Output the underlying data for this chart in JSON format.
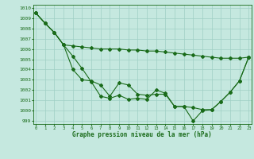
{
  "title": "Graphe pression niveau de la mer (hPa)",
  "bg_color": "#c5e8df",
  "grid_color": "#9fcfc4",
  "line_color": "#1a6b1a",
  "xlim": [
    -0.3,
    23.3
  ],
  "ylim": [
    998.7,
    1010.3
  ],
  "yticks": [
    999,
    1000,
    1001,
    1002,
    1003,
    1004,
    1005,
    1006,
    1007,
    1008,
    1009,
    1010
  ],
  "xticks": [
    0,
    1,
    2,
    3,
    4,
    5,
    6,
    7,
    8,
    9,
    10,
    11,
    12,
    13,
    14,
    15,
    16,
    17,
    18,
    19,
    20,
    21,
    22,
    23
  ],
  "series": [
    [
      1009.5,
      1008.5,
      1007.6,
      1006.4,
      1006.3,
      1006.2,
      1006.1,
      1006.0,
      1006.0,
      1006.0,
      1005.9,
      1005.9,
      1005.8,
      1005.8,
      1005.7,
      1005.6,
      1005.5,
      1005.4,
      1005.3,
      1005.2,
      1005.1,
      1005.1,
      1005.1,
      1005.2
    ],
    [
      1009.5,
      1008.5,
      1007.6,
      1006.4,
      1004.0,
      1003.0,
      1002.9,
      1002.5,
      1001.4,
      1002.7,
      1002.5,
      1001.6,
      1001.5,
      1001.6,
      1001.6,
      1000.4,
      1000.4,
      1000.3,
      1000.1,
      1000.1,
      1000.9,
      1001.8,
      1002.9,
      1005.2
    ],
    [
      1009.5,
      1008.5,
      1007.6,
      1006.4,
      1005.3,
      1004.1,
      1002.8,
      1001.4,
      1001.2,
      1001.5,
      1001.1,
      1001.2,
      1001.1,
      1002.0,
      1001.7,
      1000.4,
      1000.4,
      999.0,
      1000.0,
      1000.1,
      1000.9,
      1001.8,
      1002.9,
      1005.2
    ]
  ]
}
